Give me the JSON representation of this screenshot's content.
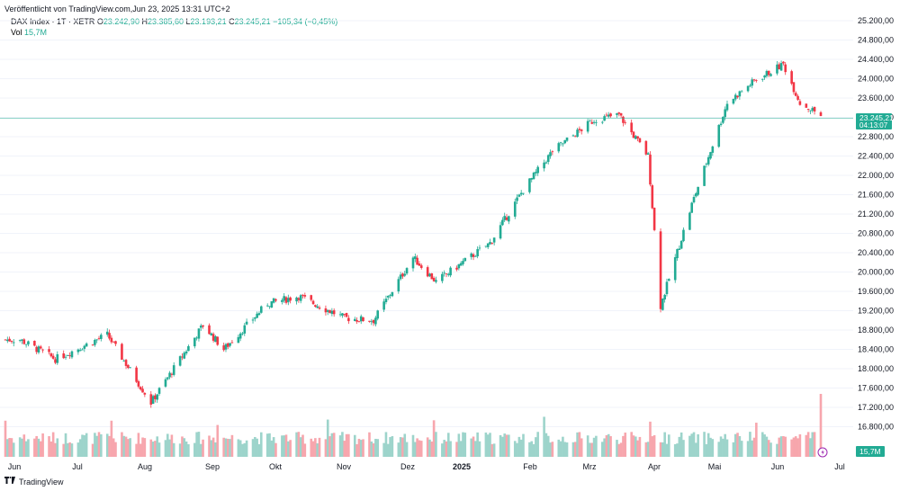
{
  "header": {
    "published": "Veröffentlicht von TradingView.com,Jun 23, 2025 13:31 UTC+2",
    "symbol": "DAX Index · 1T · XETR",
    "o_label": "O",
    "o_value": "23.242,90",
    "h_label": "H",
    "h_value": "23.385,60",
    "l_label": "L",
    "l_value": "23.193,21",
    "c_label": "C",
    "c_value": "23.245,21",
    "change": "−105,34 (−0,45%)",
    "vol_label": "Vol",
    "vol_value": "15,7M"
  },
  "price_tag": {
    "value": "23.245,21",
    "countdown": "04:13:07"
  },
  "volume_tag": "15,7M",
  "footer": {
    "brand": "TradingView",
    "logo_icon": "tradingview-logo-icon"
  },
  "colors": {
    "up": "#22ab94",
    "down": "#f23645",
    "up_vol": "#9dd4cb",
    "down_vol": "#f7a6ad",
    "grid": "#f0f3fa"
  },
  "chart_data": {
    "type": "candlestick",
    "series_name": "DAX Index · 1T · XETR",
    "x_ticks": [
      "Jun",
      "Jul",
      "Aug",
      "Sep",
      "Okt",
      "Nov",
      "Dez",
      "2025",
      "Feb",
      "Mrz",
      "Apr",
      "Mai",
      "Jun",
      "Jul"
    ],
    "y_ticks": [
      "25.200,00",
      "24.800,00",
      "24.400,00",
      "24.000,00",
      "23.600,00",
      "23.200,00",
      "22.800,00",
      "22.400,00",
      "22.000,00",
      "21.600,00",
      "21.200,00",
      "20.800,00",
      "20.400,00",
      "20.000,00",
      "19.600,00",
      "19.200,00",
      "18.800,00",
      "18.400,00",
      "18.000,00",
      "17.600,00",
      "17.200,00",
      "16.800,00"
    ],
    "ylim": [
      16550,
      25350
    ],
    "last_price": 23245.21,
    "closes_approx": [
      {
        "date": "2024-06-03",
        "close": 18600
      },
      {
        "date": "2024-06-20",
        "close": 18200
      },
      {
        "date": "2024-07-15",
        "close": 18700
      },
      {
        "date": "2024-08-05",
        "close": 17300
      },
      {
        "date": "2024-08-30",
        "close": 18900
      },
      {
        "date": "2024-09-09",
        "close": 18400
      },
      {
        "date": "2024-09-30",
        "close": 19350
      },
      {
        "date": "2024-10-15",
        "close": 19500
      },
      {
        "date": "2024-11-06",
        "close": 19050
      },
      {
        "date": "2024-11-20",
        "close": 19000
      },
      {
        "date": "2024-12-09",
        "close": 20300
      },
      {
        "date": "2024-12-20",
        "close": 19800
      },
      {
        "date": "2025-01-15",
        "close": 20600
      },
      {
        "date": "2025-01-31",
        "close": 21700
      },
      {
        "date": "2025-02-14",
        "close": 22500
      },
      {
        "date": "2025-03-06",
        "close": 23150
      },
      {
        "date": "2025-03-18",
        "close": 23250
      },
      {
        "date": "2025-04-01",
        "close": 22400
      },
      {
        "date": "2025-04-07",
        "close": 19300
      },
      {
        "date": "2025-04-22",
        "close": 21400
      },
      {
        "date": "2025-05-09",
        "close": 23500
      },
      {
        "date": "2025-05-22",
        "close": 23950
      },
      {
        "date": "2025-06-05",
        "close": 24300
      },
      {
        "date": "2025-06-13",
        "close": 23500
      },
      {
        "date": "2025-06-23",
        "close": 23245.21
      }
    ],
    "volume_last": "15,7M"
  }
}
